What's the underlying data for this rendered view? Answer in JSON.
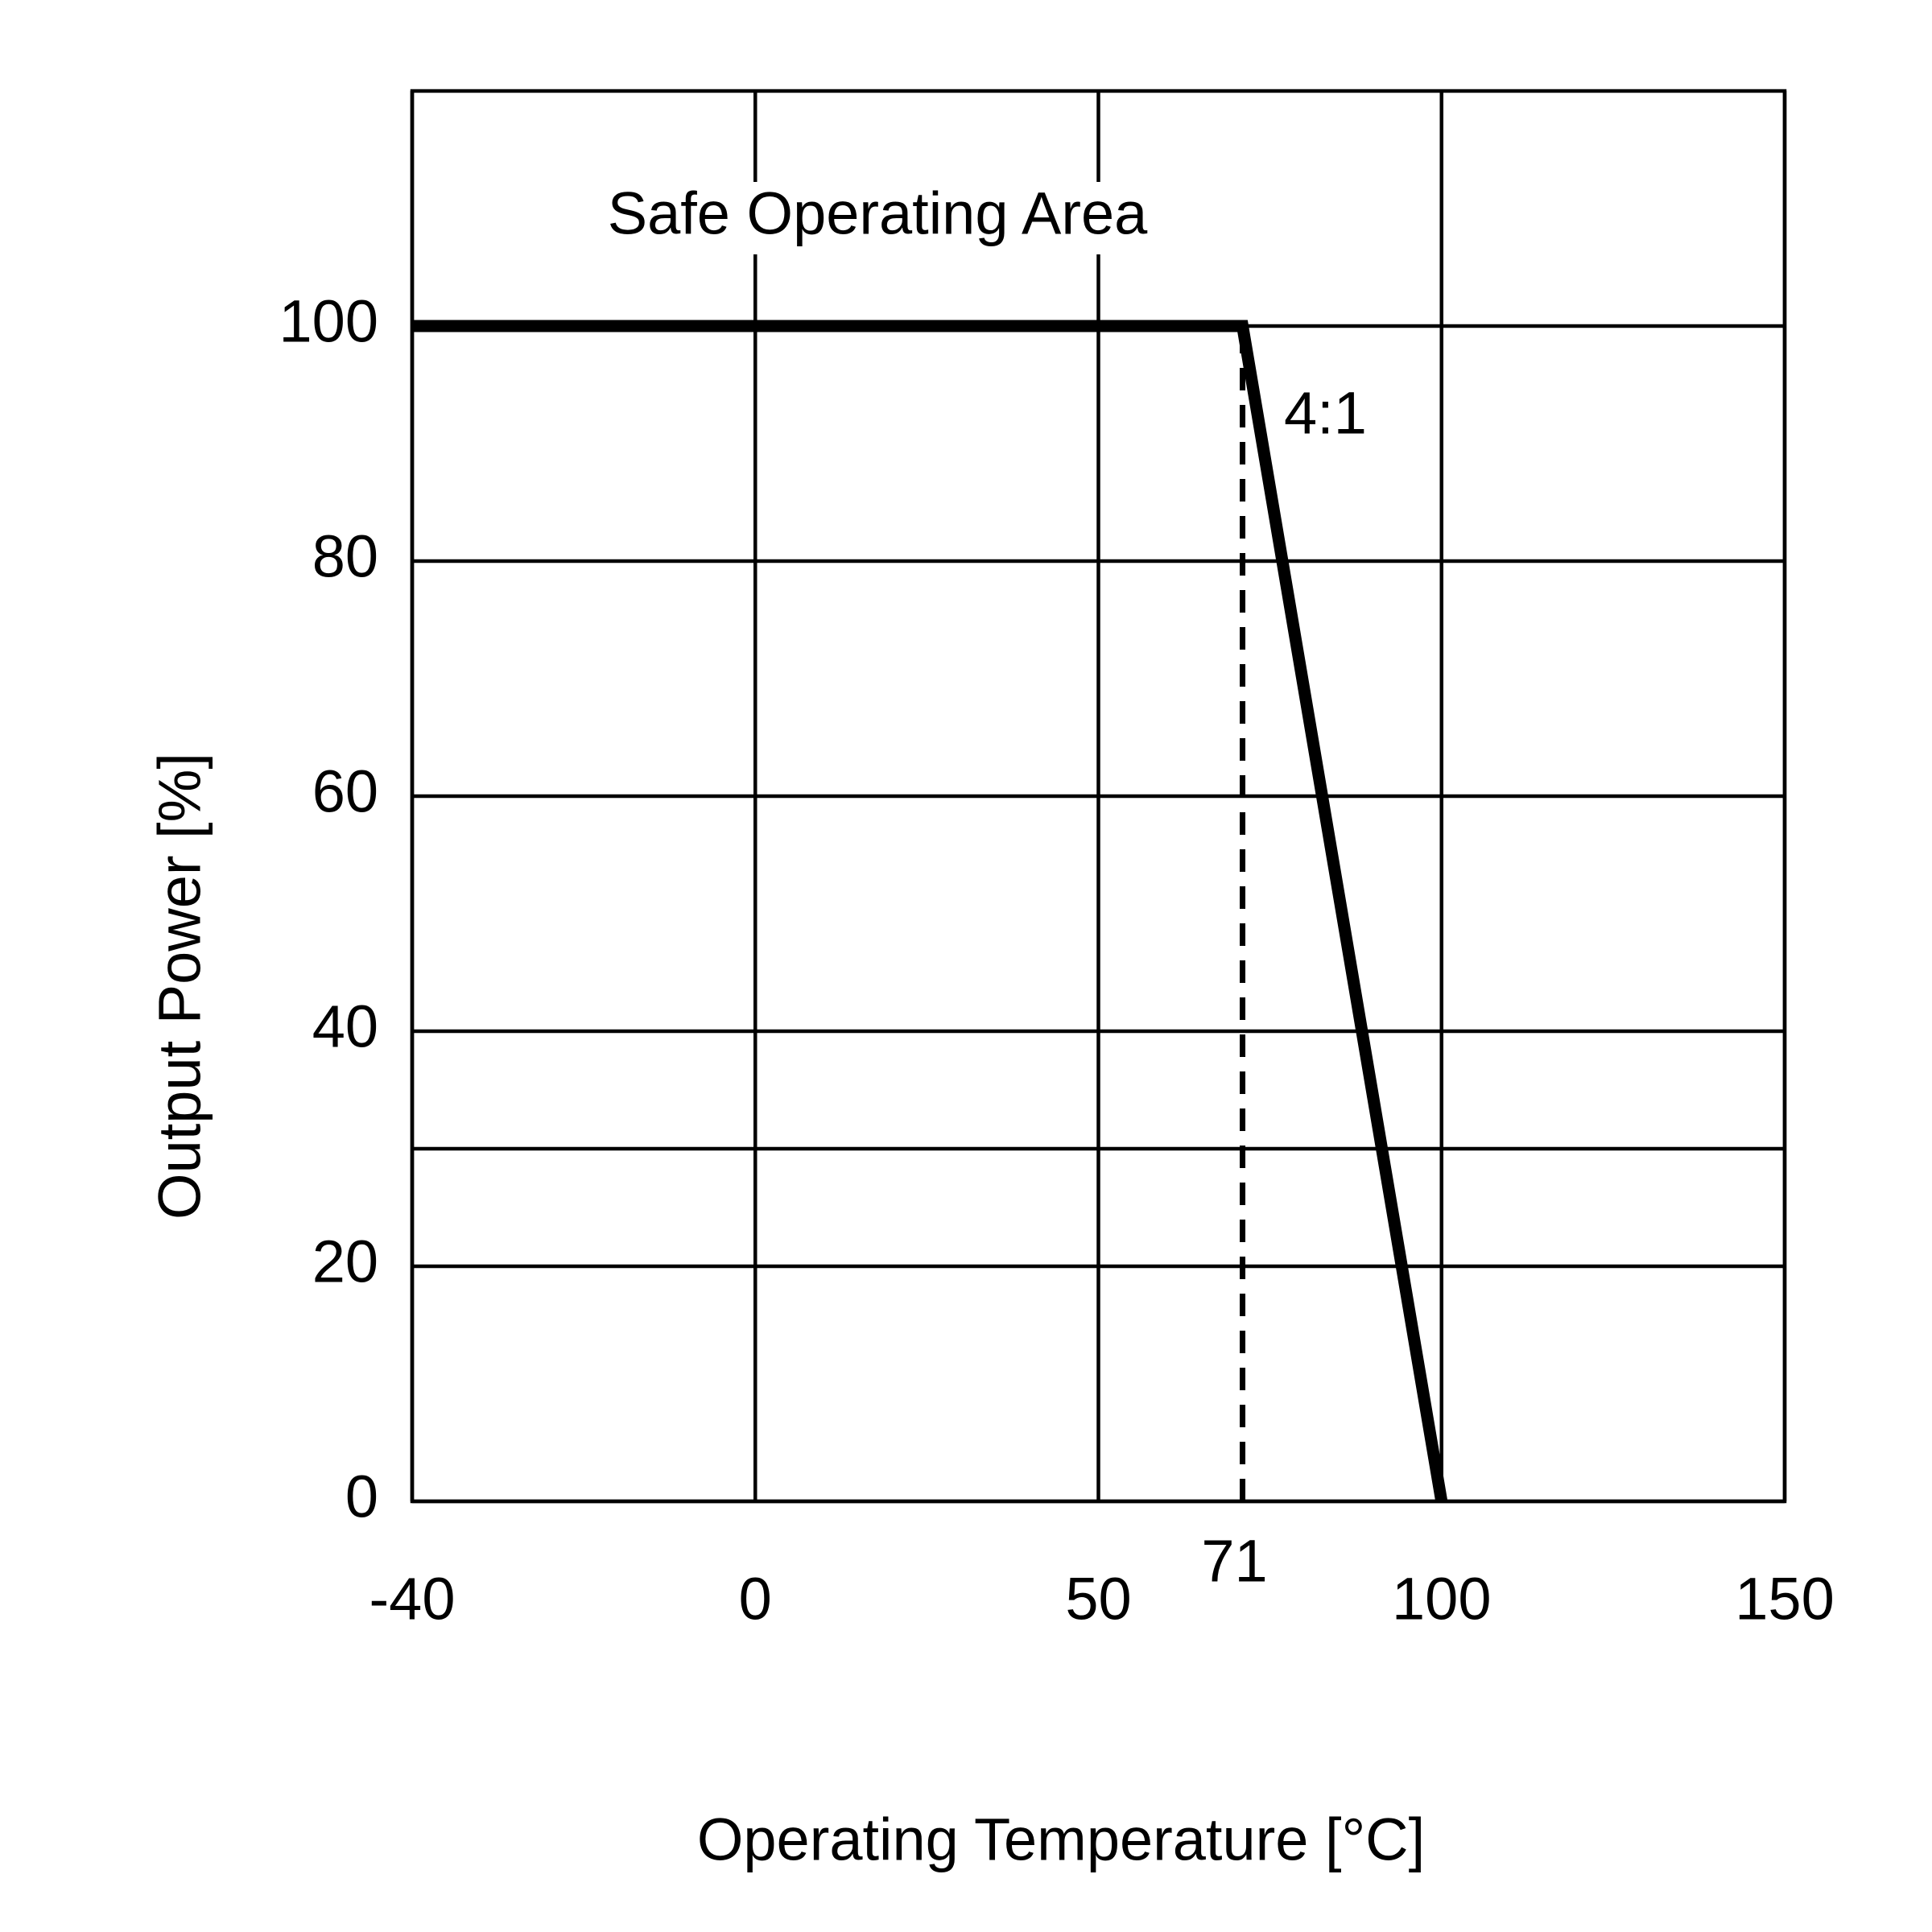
{
  "chart_data": {
    "type": "line",
    "x_label": "Operating Temperature [°C]",
    "y_label": "Output Power [%]",
    "annotations": [
      "Safe Operating Area",
      "4:1"
    ],
    "xlim": [
      -40,
      150
    ],
    "xticks": [
      -40,
      0,
      50,
      100,
      150
    ],
    "ylim": [
      0,
      120
    ],
    "yticks": [
      0,
      20,
      40,
      60,
      80,
      100
    ],
    "extra_gridlines": [
      30
    ],
    "grid": true,
    "marker_x": 71,
    "series": [
      {
        "x": [
          -40,
          71,
          100
        ],
        "values": [
          100,
          100,
          0
        ],
        "color": "#000000"
      }
    ]
  }
}
